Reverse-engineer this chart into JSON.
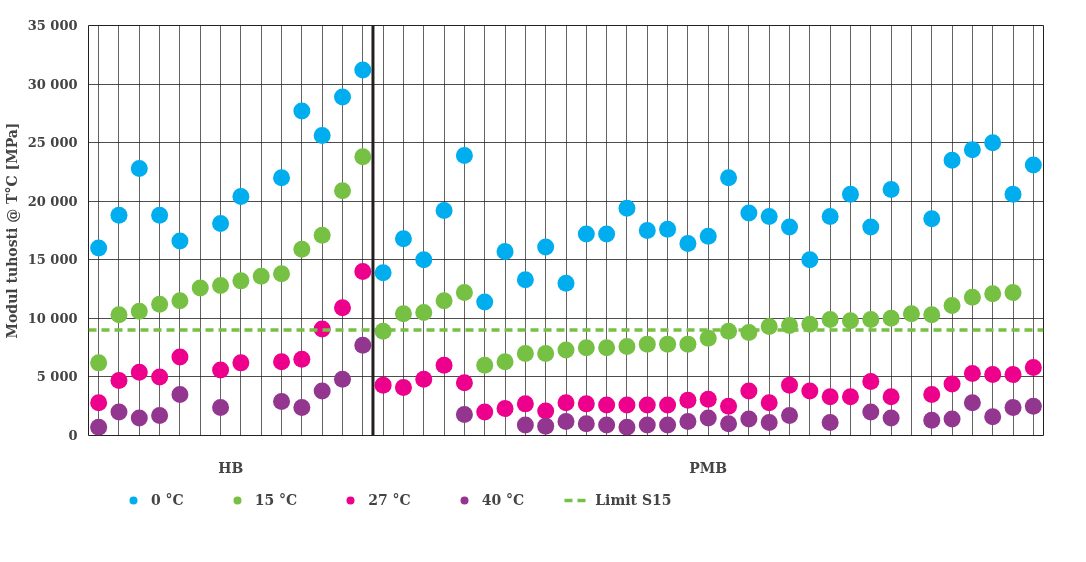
{
  "chart_data": {
    "type": "scatter",
    "ylabel": "Modul tuhosti @ T°C [MPa]",
    "categories": [
      null,
      null,
      null,
      null,
      null,
      null,
      null,
      null,
      null,
      null,
      null,
      null,
      null,
      null,
      null,
      null,
      null,
      null,
      null,
      null,
      null,
      null,
      null,
      null,
      null,
      null,
      null,
      null,
      null,
      null,
      null,
      null,
      null,
      null,
      null,
      null,
      null,
      null,
      null,
      null,
      null,
      null,
      null,
      null,
      null,
      null,
      null
    ],
    "annotations": [
      "HB",
      "PMB"
    ],
    "series": [
      {
        "name": "0 °C",
        "color": "#00aeef",
        "values": [
          16000,
          18800,
          22800,
          18800,
          16600,
          null,
          18100,
          20400,
          null,
          22000,
          27700,
          25600,
          28900,
          31200,
          13900,
          16800,
          15000,
          19200,
          23900,
          11400,
          15700,
          13300,
          16100,
          13000,
          17200,
          17200,
          19400,
          17500,
          17600,
          16400,
          17000,
          22000,
          19000,
          18700,
          17800,
          15000,
          18700,
          20600,
          17800,
          21000,
          null,
          18500,
          23500,
          24400,
          25000,
          20600,
          23100
        ]
      },
      {
        "name": "15 °C",
        "color": "#76c043",
        "values": [
          6200,
          10300,
          10600,
          11200,
          11500,
          12600,
          12800,
          13200,
          13600,
          13800,
          15900,
          17100,
          20900,
          23800,
          8900,
          10400,
          10500,
          11500,
          12200,
          6000,
          6300,
          7000,
          7000,
          7300,
          7500,
          7500,
          7600,
          7800,
          7800,
          7800,
          8300,
          8900,
          8800,
          9300,
          9400,
          9500,
          9900,
          9800,
          9900,
          10000,
          10400,
          10300,
          11100,
          11800,
          12100,
          12200,
          null
        ]
      },
      {
        "name": "27 °C",
        "color": "#ec008c",
        "values": [
          2800,
          4700,
          5400,
          5000,
          6700,
          null,
          5600,
          6200,
          null,
          6300,
          6500,
          9100,
          10900,
          14000,
          4300,
          4100,
          4800,
          6000,
          4500,
          2000,
          2300,
          2700,
          2100,
          2800,
          2700,
          2600,
          2600,
          2600,
          2600,
          3000,
          3100,
          2500,
          3800,
          2800,
          4300,
          3800,
          3300,
          3300,
          4600,
          3300,
          null,
          3500,
          4400,
          5300,
          5200,
          5200,
          5800
        ]
      },
      {
        "name": "40 °C",
        "color": "#92368f",
        "values": [
          700,
          2000,
          1500,
          1700,
          3500,
          null,
          2400,
          null,
          null,
          2900,
          2400,
          3800,
          4800,
          7700,
          null,
          null,
          null,
          null,
          1800,
          null,
          null,
          900,
          800,
          1200,
          1000,
          900,
          700,
          900,
          900,
          1200,
          1500,
          1000,
          1400,
          1100,
          1700,
          null,
          1100,
          null,
          2000,
          1500,
          null,
          1300,
          1400,
          2800,
          1600,
          2400,
          2500
        ]
      }
    ],
    "ref_lines": [
      {
        "axis": "y",
        "value": 9000,
        "label": "Limit S15",
        "color": "#76c043",
        "line_style": "dashed"
      }
    ],
    "ylim": [
      0,
      35000
    ],
    "yticks": [
      {
        "value": 0,
        "label": "0"
      },
      {
        "value": 5000,
        "label": "5 000"
      },
      {
        "value": 10000,
        "label": "10 000"
      },
      {
        "value": 15000,
        "label": "15 000"
      },
      {
        "value": 20000,
        "label": "20 000"
      },
      {
        "value": 25000,
        "label": "25 000"
      },
      {
        "value": 30000,
        "label": "30 000"
      },
      {
        "value": 35000,
        "label": "35 000"
      }
    ],
    "grid": true,
    "marker": "circle",
    "legend": "bottom"
  }
}
